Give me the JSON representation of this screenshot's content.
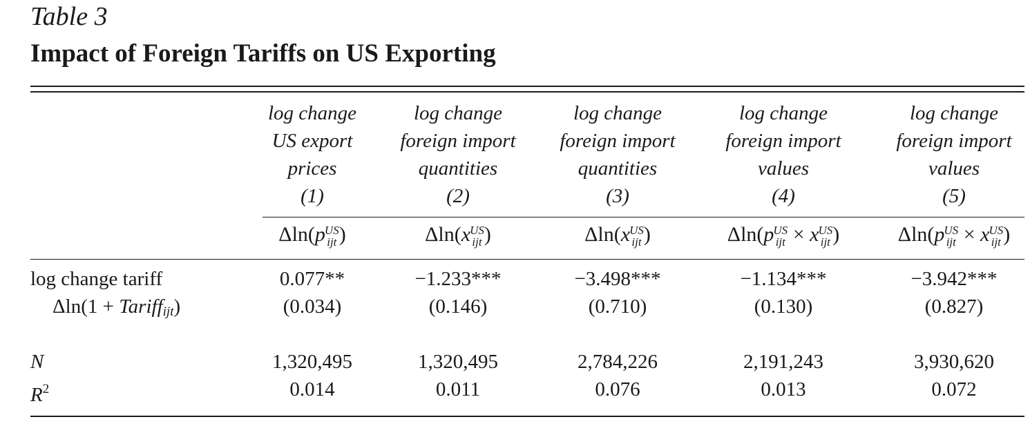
{
  "table": {
    "label": "Table 3",
    "title": "Impact of Foreign Tariffs on US Exporting",
    "columns": [
      {
        "line1": "log change",
        "line2": "US export",
        "line3": "prices",
        "number": "(1)"
      },
      {
        "line1": "log change",
        "line2": "foreign import",
        "line3": "quantities",
        "number": "(2)"
      },
      {
        "line1": "log change",
        "line2": "foreign import",
        "line3": "quantities",
        "number": "(3)"
      },
      {
        "line1": "log change",
        "line2": "foreign import",
        "line3": "values",
        "number": "(4)"
      },
      {
        "line1": "log change",
        "line2": "foreign import",
        "line3": "values",
        "number": "(5)"
      }
    ],
    "dep_vars": [
      {
        "prefix": "Δln(",
        "a": "p",
        "sup": "US",
        "sub": "ijt",
        "mid": "",
        "b": "",
        "suffix": ")"
      },
      {
        "prefix": "Δln(",
        "a": "x",
        "sup": "US",
        "sub": "ijt",
        "mid": "",
        "b": "",
        "suffix": ")"
      },
      {
        "prefix": "Δln(",
        "a": "x",
        "sup": "US",
        "sub": "ijt",
        "mid": "",
        "b": "",
        "suffix": ")"
      },
      {
        "prefix": "Δln(",
        "a": "p",
        "sup": "US",
        "sub": "ijt",
        "mid": " × ",
        "b": "x",
        "suffix": ")"
      },
      {
        "prefix": "Δln(",
        "a": "p",
        "sup": "US",
        "sub": "ijt",
        "mid": " × ",
        "b": "x",
        "suffix": ")"
      }
    ],
    "rows": {
      "tariff_label": "log change tariff",
      "tariff_expr_prefix": "Δln(1 + ",
      "tariff_expr_var": "Tariff",
      "tariff_expr_sub": "ijt",
      "tariff_expr_suffix": ")",
      "coefficients": [
        "0.077**",
        "−1.233***",
        "−3.498***",
        "−1.134***",
        "−3.942***"
      ],
      "std_errors": [
        "(0.034)",
        "(0.146)",
        "(0.710)",
        "(0.130)",
        "(0.827)"
      ],
      "n_label": "N",
      "n_values": [
        "1,320,495",
        "1,320,495",
        "2,784,226",
        "2,191,243",
        "3,930,620"
      ],
      "r2_label": "R",
      "r2_sup": "2",
      "r2_values": [
        "0.014",
        "0.011",
        "0.076",
        "0.013",
        "0.072"
      ]
    }
  }
}
